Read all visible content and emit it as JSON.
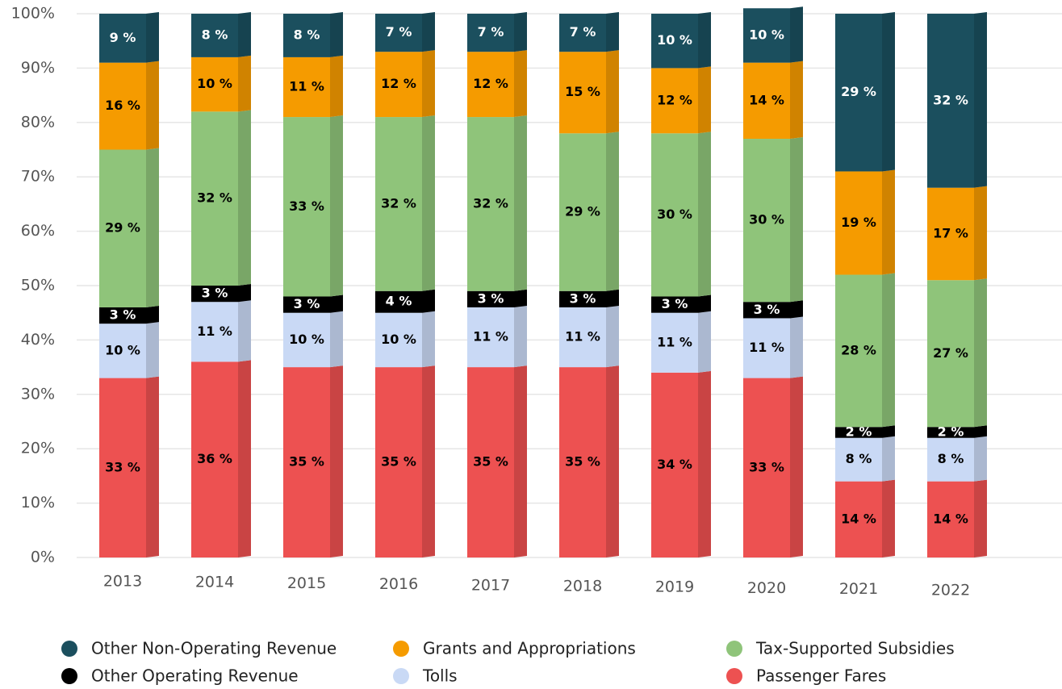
{
  "chart_data": {
    "type": "stacked_bar",
    "categories": [
      "2013",
      "2014",
      "2015",
      "2016",
      "2017",
      "2018",
      "2019",
      "2020",
      "2021",
      "2022"
    ],
    "series": [
      {
        "name": "Other Non-Operating Revenue",
        "color": "#1b4f5e",
        "values": [
          9,
          8,
          8,
          7,
          7,
          7,
          10,
          10,
          29,
          32
        ],
        "value_labels": [
          "9 %",
          "8 %",
          "8 %",
          "7 %",
          "7 %",
          "7 %",
          "10 %",
          "10 %",
          "29 %",
          "32 %"
        ]
      },
      {
        "name": "Grants and Appropriations",
        "color": "#f59b00",
        "values": [
          16,
          10,
          11,
          12,
          12,
          15,
          12,
          14,
          19,
          17
        ],
        "value_labels": [
          "16 %",
          "10 %",
          "11 %",
          "12 %",
          "12 %",
          "15 %",
          "12 %",
          "14 %",
          "19 %",
          "17 %"
        ]
      },
      {
        "name": "Tax-Supported Subsidies",
        "color": "#8fc47a",
        "values": [
          29,
          32,
          33,
          32,
          32,
          29,
          30,
          30,
          28,
          27
        ],
        "value_labels": [
          "29 %",
          "32 %",
          "33 %",
          "32 %",
          "32 %",
          "29 %",
          "30 %",
          "30 %",
          "28 %",
          "27 %"
        ]
      },
      {
        "name": "Other Operating Revenue",
        "color": "#000000",
        "values": [
          3,
          3,
          3,
          4,
          3,
          3,
          3,
          3,
          2,
          2
        ],
        "value_labels": [
          "3 %",
          "3 %",
          "3 %",
          "4 %",
          "3 %",
          "3 %",
          "3 %",
          "3 %",
          "2 %",
          "2 %"
        ]
      },
      {
        "name": "Tolls",
        "color": "#c9d9f5",
        "values": [
          10,
          11,
          10,
          10,
          11,
          11,
          11,
          11,
          8,
          8
        ],
        "value_labels": [
          "10 %",
          "11 %",
          "10 %",
          "10 %",
          "11 %",
          "11 %",
          "11 %",
          "11 %",
          "8 %",
          "8 %"
        ]
      },
      {
        "name": "Passenger Fares",
        "color": "#ed5151",
        "values": [
          33,
          36,
          35,
          35,
          35,
          35,
          34,
          33,
          14,
          14
        ],
        "value_labels": [
          "33 %",
          "36 %",
          "35 %",
          "35 %",
          "35 %",
          "35 %",
          "34 %",
          "33 %",
          "14 %",
          "14 %"
        ]
      }
    ],
    "ylim": [
      0,
      100
    ],
    "yticks": [
      {
        "value": 0,
        "label": "0%"
      },
      {
        "value": 10,
        "label": "10%"
      },
      {
        "value": 20,
        "label": "20%"
      },
      {
        "value": 30,
        "label": "30%"
      },
      {
        "value": 40,
        "label": "40%"
      },
      {
        "value": 50,
        "label": "50%"
      },
      {
        "value": 60,
        "label": "60%"
      },
      {
        "value": 70,
        "label": "70%"
      },
      {
        "value": 80,
        "label": "80%"
      },
      {
        "value": 90,
        "label": "90%"
      },
      {
        "value": 100,
        "label": "100%"
      }
    ],
    "grid": true,
    "legend": "bottom"
  }
}
